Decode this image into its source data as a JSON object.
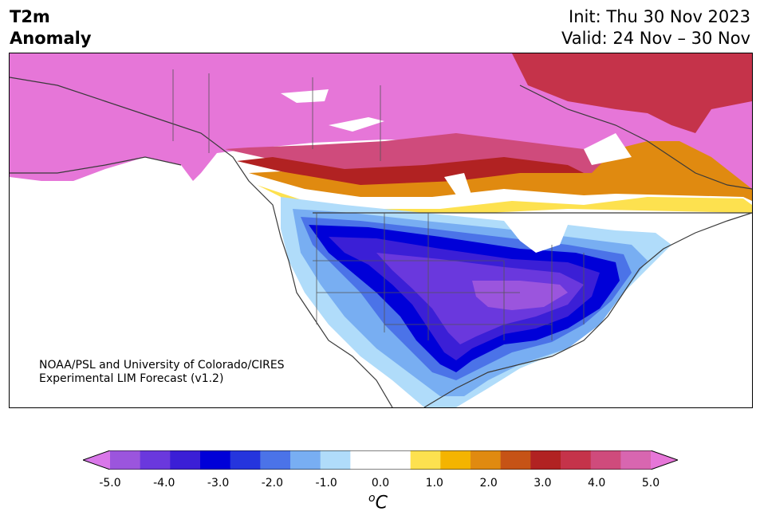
{
  "title": {
    "line1": "T2m",
    "line2": "Anomaly"
  },
  "init": "Init: Thu 30 Nov 2023",
  "valid": "Valid: 24 Nov – 30 Nov",
  "credit": {
    "line1": "NOAA/PSL and University of Colorado/CIRES",
    "line2": "Experimental LIM Forecast (v1.2)"
  },
  "colorbar": {
    "ticks": [
      "-5.0",
      "-4.0",
      "-3.0",
      "-2.0",
      "-1.0",
      "0.0",
      "1.0",
      "2.0",
      "3.0",
      "4.0",
      "5.0"
    ],
    "unit_sup": "o",
    "unit": "C",
    "colors": [
      "#d977e9",
      "#9b55dd",
      "#6a38dd",
      "#3b1fd6",
      "#0000d8",
      "#2535dd",
      "#4b73e8",
      "#78aef2",
      "#b0dcfa",
      "#ffffff",
      "#ffffff",
      "#fde14f",
      "#f4b400",
      "#e08a10",
      "#c65316",
      "#b12222",
      "#c5334a",
      "#cf4b7c",
      "#d866b0",
      "#e676d8"
    ]
  },
  "colors": {
    "cold_outer": "#b0dcfa",
    "cold_mid": "#4b73e8",
    "cold_core": "#0000d8",
    "cold_deep": "#6a38dd",
    "warm_pink": "#e676d8",
    "warm_red": "#c5334a",
    "warm_yellow": "#fde14f"
  }
}
